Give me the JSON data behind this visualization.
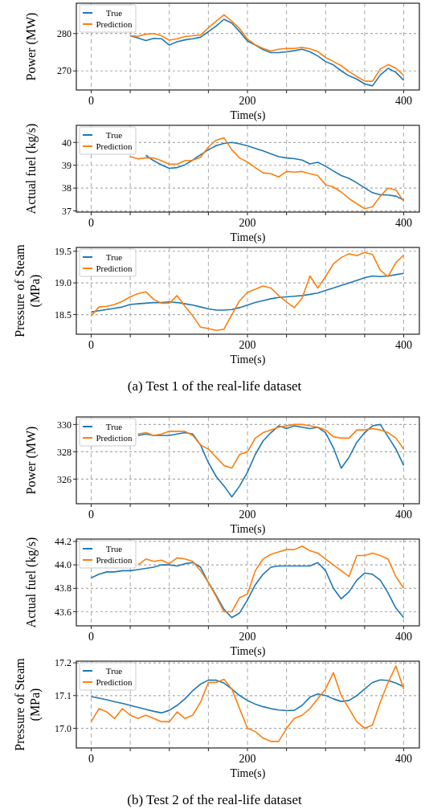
{
  "chart_data": [
    {
      "type": "line",
      "xlabel": "Time(s)",
      "ylabel": "Power (MW)",
      "grid": true,
      "legend": "top left",
      "xlim": [
        -19,
        420
      ],
      "xticks": [
        0,
        {
          "value": 50,
          "label": null
        },
        {
          "value": 100,
          "label": null
        },
        {
          "value": 150,
          "label": null
        },
        200,
        {
          "value": 250,
          "label": null
        },
        {
          "value": 300,
          "label": null
        },
        {
          "value": 350,
          "label": null
        },
        400
      ],
      "ylim": [
        264.9,
        288.1
      ],
      "yticks": [
        270,
        280
      ],
      "x": [
        50,
        60,
        70,
        80,
        90,
        100,
        110,
        120,
        130,
        140,
        150,
        160,
        170,
        180,
        190,
        200,
        210,
        220,
        230,
        240,
        250,
        260,
        270,
        280,
        290,
        300,
        310,
        320,
        330,
        340,
        350,
        360,
        370,
        380,
        390,
        400
      ],
      "series": [
        {
          "name": "True",
          "color": "#1f77b4",
          "values": [
            279.4,
            278.8,
            278.1,
            278.7,
            278.6,
            276.9,
            277.8,
            278.3,
            278.6,
            279.0,
            280.5,
            282.0,
            283.8,
            282.8,
            280.5,
            278.0,
            276.9,
            275.7,
            274.9,
            274.9,
            275.1,
            275.4,
            275.8,
            275.1,
            274.0,
            272.5,
            271.6,
            270.0,
            268.7,
            267.8,
            266.5,
            266.0,
            268.9,
            270.7,
            269.6,
            267.5
          ]
        },
        {
          "name": "Prediction",
          "color": "#ff7f0e",
          "values": [
            279.4,
            279.3,
            279.8,
            280.0,
            279.4,
            278.2,
            278.6,
            279.2,
            279.4,
            279.6,
            281.5,
            283.3,
            285.0,
            283.3,
            281.3,
            278.5,
            277.0,
            276.0,
            275.3,
            275.8,
            276.0,
            276.0,
            276.3,
            275.9,
            275.2,
            273.6,
            272.5,
            271.4,
            269.8,
            268.5,
            267.3,
            267.2,
            270.5,
            271.7,
            270.7,
            268.8
          ]
        }
      ]
    },
    {
      "type": "line",
      "xlabel": "Time(s)",
      "ylabel": "Actual fuel (kg/s)",
      "grid": true,
      "legend": "top left",
      "xlim": [
        -19,
        420
      ],
      "xticks": [
        0,
        {
          "value": 50,
          "label": null
        },
        {
          "value": 100,
          "label": null
        },
        {
          "value": 150,
          "label": null
        },
        200,
        {
          "value": 250,
          "label": null
        },
        {
          "value": 300,
          "label": null
        },
        {
          "value": 350,
          "label": null
        },
        400
      ],
      "ylim": [
        36.95,
        40.75
      ],
      "yticks": [
        37,
        38,
        39,
        40
      ],
      "x": [
        50,
        60,
        70,
        80,
        90,
        100,
        110,
        120,
        130,
        140,
        150,
        160,
        170,
        180,
        190,
        200,
        210,
        220,
        230,
        240,
        250,
        260,
        270,
        280,
        290,
        300,
        310,
        320,
        330,
        340,
        350,
        360,
        370,
        380,
        390,
        400
      ],
      "series": [
        {
          "name": "True",
          "color": "#1f77b4",
          "values": [
            null,
            null,
            39.44,
            39.2,
            39.02,
            38.87,
            38.9,
            39.02,
            39.23,
            39.46,
            39.68,
            39.86,
            39.96,
            40.0,
            39.94,
            39.85,
            39.74,
            39.63,
            39.5,
            39.38,
            39.32,
            39.29,
            39.23,
            39.06,
            39.13,
            38.96,
            38.75,
            38.55,
            38.43,
            38.23,
            38.01,
            37.8,
            37.71,
            37.7,
            37.65,
            37.48
          ]
        },
        {
          "name": "Prediction",
          "color": "#ff7f0e",
          "values": [
            39.38,
            39.28,
            39.33,
            39.32,
            39.2,
            39.05,
            39.05,
            39.2,
            39.22,
            39.35,
            39.8,
            40.1,
            40.2,
            39.68,
            39.32,
            39.14,
            38.9,
            38.67,
            38.63,
            38.49,
            38.73,
            38.7,
            38.73,
            38.63,
            38.55,
            38.15,
            38.05,
            37.83,
            37.54,
            37.32,
            37.1,
            37.18,
            37.65,
            38.0,
            37.92,
            37.42
          ]
        }
      ]
    },
    {
      "type": "line",
      "xlabel": "Time(s)",
      "ylabel": "Pressure of Steam (MPa)",
      "grid": true,
      "legend": "top left",
      "xlim": [
        -19,
        420
      ],
      "xticks": [
        0,
        {
          "value": 50,
          "label": null
        },
        {
          "value": 100,
          "label": null
        },
        {
          "value": 150,
          "label": null
        },
        200,
        {
          "value": 250,
          "label": null
        },
        {
          "value": 300,
          "label": null
        },
        {
          "value": 350,
          "label": null
        },
        400
      ],
      "ylim": [
        18.19,
        19.56
      ],
      "yticks": [
        18.5,
        {
          "value": 19,
          "label": "19.0"
        },
        19.5
      ],
      "annotations": [
        "(a) Test 1 of the real-life dataset"
      ],
      "x": [
        0,
        10,
        20,
        30,
        40,
        50,
        60,
        70,
        80,
        90,
        100,
        110,
        120,
        130,
        140,
        150,
        160,
        170,
        180,
        190,
        200,
        210,
        220,
        230,
        240,
        250,
        260,
        270,
        280,
        290,
        300,
        310,
        320,
        330,
        340,
        350,
        360,
        370,
        380,
        390,
        400
      ],
      "series": [
        {
          "name": "True",
          "color": "#1f77b4",
          "values": [
            18.54,
            18.56,
            18.58,
            18.6,
            18.62,
            18.66,
            18.67,
            18.68,
            18.69,
            18.69,
            18.7,
            18.69,
            18.67,
            18.65,
            18.62,
            18.59,
            18.57,
            18.57,
            18.58,
            18.61,
            18.65,
            18.69,
            18.72,
            18.75,
            18.77,
            18.78,
            18.79,
            18.8,
            18.82,
            18.84,
            18.88,
            18.92,
            18.96,
            19.0,
            19.04,
            19.08,
            19.11,
            19.1,
            19.11,
            19.13,
            19.15
          ]
        },
        {
          "name": "Prediction",
          "color": "#ff7f0e",
          "values": [
            18.48,
            18.62,
            18.63,
            18.66,
            18.71,
            18.78,
            18.83,
            18.86,
            18.74,
            18.68,
            18.68,
            18.8,
            18.63,
            18.48,
            18.3,
            18.28,
            18.25,
            18.27,
            18.5,
            18.72,
            18.85,
            18.9,
            18.95,
            18.92,
            18.8,
            18.7,
            18.61,
            18.76,
            19.11,
            18.92,
            19.1,
            19.3,
            19.4,
            19.46,
            19.43,
            19.48,
            19.45,
            19.2,
            19.1,
            19.32,
            19.44
          ]
        }
      ]
    },
    {
      "type": "line",
      "xlabel": "Time(s)",
      "ylabel": "Power (MW)",
      "grid": true,
      "legend": "top left",
      "xlim": [
        -19,
        420
      ],
      "xticks": [
        0,
        {
          "value": 50,
          "label": null
        },
        {
          "value": 100,
          "label": null
        },
        {
          "value": 150,
          "label": null
        },
        200,
        {
          "value": 250,
          "label": null
        },
        {
          "value": 300,
          "label": null
        },
        {
          "value": 350,
          "label": null
        },
        400
      ],
      "ylim": [
        324.2,
        330.55
      ],
      "yticks": [
        326,
        328,
        330
      ],
      "x": [
        60,
        70,
        80,
        90,
        100,
        110,
        120,
        130,
        140,
        150,
        160,
        170,
        180,
        190,
        200,
        210,
        220,
        230,
        240,
        250,
        260,
        270,
        280,
        290,
        300,
        310,
        320,
        330,
        340,
        350,
        360,
        370,
        380,
        390,
        400
      ],
      "series": [
        {
          "name": "True",
          "color": "#1f77b4",
          "values": [
            329.2,
            329.3,
            329.2,
            329.2,
            329.2,
            329.3,
            329.4,
            329.3,
            328.5,
            327.2,
            326.2,
            325.5,
            324.7,
            325.5,
            326.5,
            327.8,
            328.8,
            329.4,
            329.9,
            329.7,
            329.9,
            329.8,
            329.7,
            329.8,
            329.4,
            328.3,
            326.8,
            327.6,
            328.7,
            329.4,
            329.9,
            330.0,
            329.1,
            328.2,
            327.0
          ]
        },
        {
          "name": "Prediction",
          "color": "#ff7f0e",
          "values": [
            329.3,
            329.4,
            329.2,
            329.3,
            329.5,
            329.5,
            329.5,
            329.2,
            328.5,
            328.2,
            327.6,
            327.0,
            326.8,
            327.8,
            328.0,
            329.0,
            329.4,
            329.6,
            329.8,
            329.9,
            330.0,
            330.0,
            329.9,
            329.8,
            329.6,
            329.1,
            329.0,
            329.0,
            329.6,
            329.6,
            329.7,
            329.6,
            329.4,
            329.0,
            328.2
          ]
        }
      ]
    },
    {
      "type": "line",
      "xlabel": "Time(s)",
      "ylabel": "Actual fuel (kg/s)",
      "grid": true,
      "legend": "top left",
      "xlim": [
        -19,
        420
      ],
      "xticks": [
        0,
        {
          "value": 50,
          "label": null
        },
        {
          "value": 100,
          "label": null
        },
        {
          "value": 150,
          "label": null
        },
        200,
        {
          "value": 250,
          "label": null
        },
        {
          "value": 300,
          "label": null
        },
        {
          "value": 350,
          "label": null
        },
        400
      ],
      "ylim": [
        43.48,
        44.22
      ],
      "yticks": [
        43.6,
        43.8,
        {
          "value": 44,
          "label": "44.0"
        },
        44.2
      ],
      "x": [
        0,
        10,
        20,
        30,
        40,
        50,
        60,
        70,
        80,
        90,
        100,
        110,
        120,
        130,
        140,
        150,
        160,
        170,
        180,
        190,
        200,
        210,
        220,
        230,
        240,
        250,
        260,
        270,
        280,
        290,
        300,
        310,
        320,
        330,
        340,
        350,
        360,
        370,
        380,
        390,
        400
      ],
      "series": [
        {
          "name": "True",
          "color": "#1f77b4",
          "values": [
            43.89,
            43.92,
            43.94,
            43.94,
            43.95,
            43.95,
            43.96,
            43.97,
            43.98,
            44.0,
            44.0,
            43.99,
            44.01,
            44.02,
            43.98,
            43.85,
            43.74,
            43.62,
            43.55,
            43.59,
            43.7,
            43.83,
            43.92,
            43.98,
            43.99,
            43.99,
            43.99,
            43.99,
            43.99,
            44.02,
            43.95,
            43.8,
            43.71,
            43.77,
            43.87,
            43.93,
            43.92,
            43.87,
            43.76,
            43.63,
            43.55
          ]
        },
        {
          "name": "Prediction",
          "color": "#ff7f0e",
          "values": [
            null,
            null,
            null,
            null,
            null,
            null,
            44.0,
            44.05,
            44.03,
            44.04,
            44.01,
            44.06,
            44.05,
            44.03,
            43.95,
            43.85,
            43.73,
            43.6,
            43.6,
            43.72,
            43.75,
            43.95,
            44.05,
            44.09,
            44.11,
            44.13,
            44.13,
            44.16,
            44.12,
            44.1,
            44.05,
            44.0,
            43.95,
            43.9,
            44.08,
            44.08,
            44.1,
            44.08,
            44.05,
            43.9,
            43.8
          ]
        }
      ]
    },
    {
      "type": "line",
      "xlabel": "Time(s)",
      "ylabel": "Pressure of Steam (MPa)",
      "grid": true,
      "legend": "top left",
      "xlim": [
        -19,
        420
      ],
      "xticks": [
        0,
        {
          "value": 50,
          "label": null
        },
        {
          "value": 100,
          "label": null
        },
        {
          "value": 150,
          "label": null
        },
        200,
        {
          "value": 250,
          "label": null
        },
        {
          "value": 300,
          "label": null
        },
        {
          "value": 350,
          "label": null
        },
        400
      ],
      "ylim": [
        16.94,
        17.205
      ],
      "yticks": [
        {
          "value": 17,
          "label": "17.0"
        },
        17.1,
        17.2
      ],
      "annotations": [
        "(b) Test 2 of the real-life dataset"
      ],
      "x": [
        0,
        10,
        20,
        30,
        40,
        50,
        60,
        70,
        80,
        90,
        100,
        110,
        120,
        130,
        140,
        150,
        160,
        170,
        180,
        190,
        200,
        210,
        220,
        230,
        240,
        250,
        260,
        270,
        280,
        290,
        300,
        310,
        320,
        330,
        340,
        350,
        360,
        370,
        380,
        390,
        400
      ],
      "series": [
        {
          "name": "True",
          "color": "#1f77b4",
          "values": [
            17.097,
            17.092,
            17.087,
            17.081,
            17.076,
            17.07,
            17.064,
            17.058,
            17.052,
            17.047,
            17.055,
            17.07,
            17.09,
            17.115,
            17.135,
            17.147,
            17.147,
            17.138,
            17.12,
            17.1,
            17.085,
            17.074,
            17.066,
            17.06,
            17.056,
            17.054,
            17.055,
            17.07,
            17.095,
            17.105,
            17.1,
            17.09,
            17.082,
            17.085,
            17.1,
            17.12,
            17.14,
            17.148,
            17.146,
            17.138,
            17.127
          ]
        },
        {
          "name": "Prediction",
          "color": "#ff7f0e",
          "values": [
            17.02,
            17.06,
            17.05,
            17.03,
            17.06,
            17.04,
            17.03,
            17.04,
            17.03,
            17.02,
            17.02,
            17.05,
            17.03,
            17.04,
            17.08,
            17.14,
            17.14,
            17.15,
            17.12,
            17.06,
            17.0,
            16.99,
            16.97,
            16.96,
            16.96,
            17.0,
            17.03,
            17.04,
            17.06,
            17.09,
            17.12,
            17.17,
            17.1,
            17.06,
            17.02,
            17.0,
            17.01,
            17.08,
            17.14,
            17.19,
            17.12
          ]
        }
      ]
    }
  ]
}
